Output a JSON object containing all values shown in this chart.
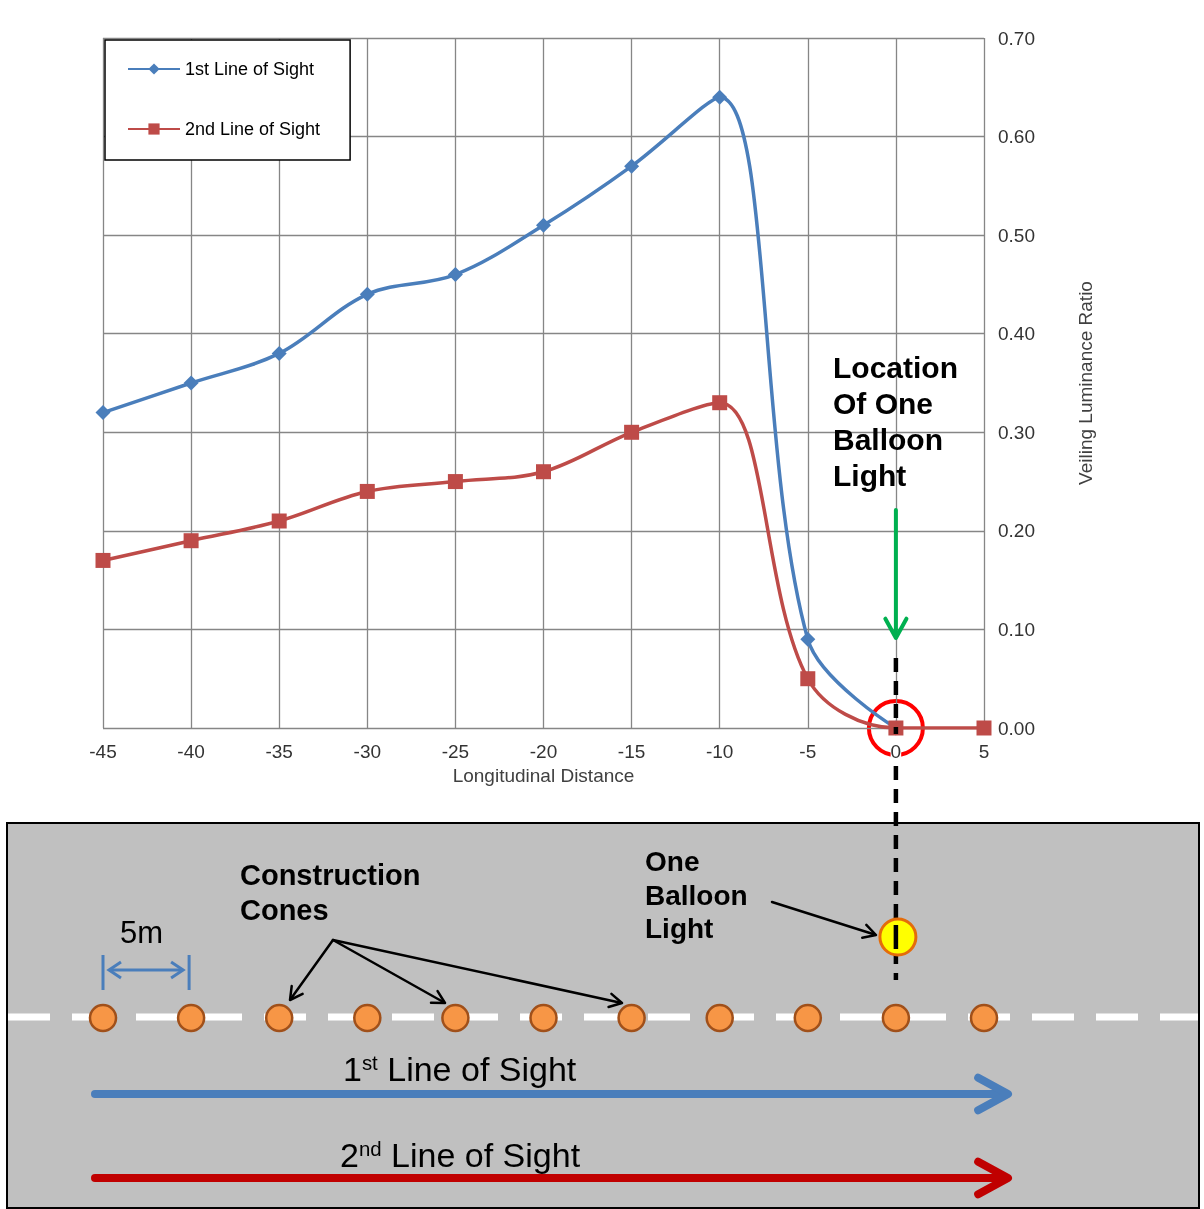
{
  "chart_data": {
    "type": "line",
    "xlabel": "Longitudinal Distance",
    "ylabel": "Veiling Luminance Ratio",
    "series": [
      {
        "name": "1st Line of Sight",
        "color": "#4a7ebb",
        "marker": "diamond",
        "x": [
          -45,
          -40,
          -35,
          -30,
          -25,
          -20,
          -15,
          -10,
          -5,
          0
        ],
        "values": [
          0.32,
          0.35,
          0.38,
          0.44,
          0.46,
          0.51,
          0.57,
          0.64,
          0.09,
          0
        ]
      },
      {
        "name": "2nd Line of Sight",
        "color": "#be4b48",
        "marker": "square",
        "x": [
          -45,
          -40,
          -35,
          -30,
          -25,
          -20,
          -15,
          -10,
          -5,
          0,
          5
        ],
        "values": [
          0.17,
          0.19,
          0.21,
          0.24,
          0.25,
          0.26,
          0.3,
          0.33,
          0.05,
          0,
          0
        ]
      }
    ],
    "xlim": [
      -45,
      5
    ],
    "xticks": [
      -45,
      -40,
      -35,
      -30,
      -25,
      -20,
      -15,
      -10,
      -5,
      0,
      5
    ],
    "ylim": [
      0,
      0.7
    ],
    "yticks": [
      {
        "value": 0,
        "label": "0.00"
      },
      {
        "value": 0.1,
        "label": "0.10"
      },
      {
        "value": 0.2,
        "label": "0.20"
      },
      {
        "value": 0.3,
        "label": "0.30"
      },
      {
        "value": 0.4,
        "label": "0.40"
      },
      {
        "value": 0.5,
        "label": "0.50"
      },
      {
        "value": 0.6,
        "label": "0.60"
      },
      {
        "value": 0.7,
        "label": "0.70"
      }
    ],
    "grid": true,
    "legend": "top left",
    "annotations": [
      "Location Of One Balloon Light",
      "Construction Cones",
      "5m",
      "One Balloon Light",
      "1$^{st}$ Line of Sight",
      "2$^{nd}$ Line of Sight"
    ]
  }
}
